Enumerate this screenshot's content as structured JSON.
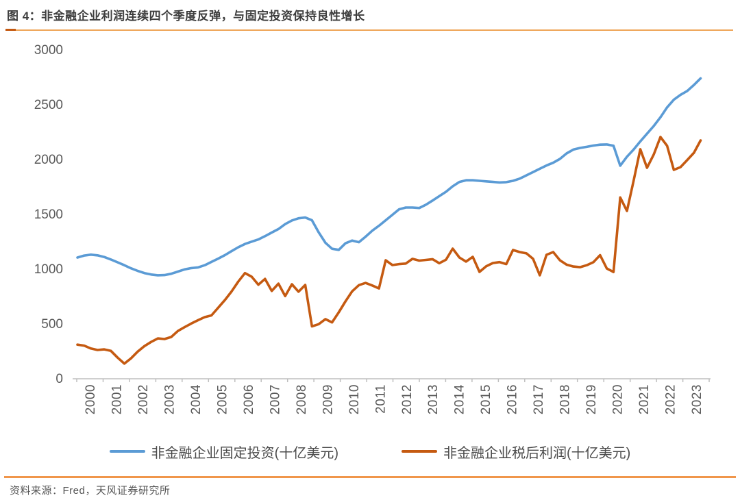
{
  "header": {
    "figure_title": "图 4：非金融企业利润连续四个季度反弹，与固定投资保持良性增长"
  },
  "footer": {
    "source": "资料来源：Fred，天风证券研究所"
  },
  "colors": {
    "series_blue": "#5B9BD5",
    "series_orange": "#C55A11",
    "title_underline": "#EFA558",
    "title_underline_accent": "#C45911",
    "footer_rule": "#F0964B",
    "axis_gray": "#BFBFBF",
    "tick_label_gray": "#595959"
  },
  "chart_data": {
    "type": "line",
    "title": "图 4：非金融企业利润连续四个季度反弹，与固定投资保持良性增长",
    "xlabel": "",
    "ylabel": "",
    "ylim": [
      0,
      3000
    ],
    "yticks": [
      0,
      500,
      1000,
      1500,
      2000,
      2500,
      3000
    ],
    "grid": false,
    "legend_position": "bottom",
    "x_frequency": "quarterly",
    "x_range": [
      "2000Q1",
      "2023Q2"
    ],
    "x_tick_labels": [
      "2000",
      "2001",
      "2002",
      "2003",
      "2004",
      "2005",
      "2006",
      "2007",
      "2008",
      "2009",
      "2010",
      "2011",
      "2012",
      "2013",
      "2014",
      "2015",
      "2016",
      "2017",
      "2018",
      "2019",
      "2020",
      "2021",
      "2022",
      "2023"
    ],
    "series": [
      {
        "name": "非金融企业固定投资(十亿美元)",
        "color": "#5B9BD5",
        "values": [
          1100,
          1118,
          1126,
          1120,
          1105,
          1082,
          1056,
          1030,
          1002,
          978,
          958,
          945,
          938,
          940,
          952,
          972,
          992,
          1004,
          1010,
          1030,
          1060,
          1090,
          1122,
          1158,
          1194,
          1224,
          1245,
          1265,
          1295,
          1328,
          1360,
          1405,
          1438,
          1458,
          1465,
          1440,
          1330,
          1235,
          1180,
          1170,
          1230,
          1255,
          1240,
          1290,
          1345,
          1390,
          1440,
          1490,
          1540,
          1556,
          1556,
          1552,
          1582,
          1620,
          1660,
          1700,
          1750,
          1790,
          1805,
          1805,
          1800,
          1795,
          1790,
          1785,
          1788,
          1800,
          1820,
          1850,
          1880,
          1910,
          1940,
          1965,
          2000,
          2050,
          2085,
          2100,
          2110,
          2122,
          2130,
          2132,
          2120,
          1938,
          2020,
          2085,
          2160,
          2230,
          2300,
          2380,
          2470,
          2540,
          2585,
          2620,
          2675,
          2735
        ]
      },
      {
        "name": "非金融企业税后利润(十亿美元)",
        "color": "#C55A11",
        "values": [
          305,
          296,
          270,
          256,
          262,
          248,
          186,
          132,
          180,
          242,
          292,
          330,
          362,
          356,
          375,
          430,
          465,
          498,
          528,
          556,
          572,
          642,
          712,
          790,
          880,
          958,
          925,
          852,
          905,
          795,
          862,
          748,
          856,
          788,
          850,
          472,
          492,
          538,
          508,
          600,
          700,
          792,
          848,
          868,
          845,
          818,
          1075,
          1031,
          1040,
          1045,
          1088,
          1072,
          1078,
          1085,
          1048,
          1080,
          1181,
          1100,
          1063,
          1106,
          969,
          1020,
          1050,
          1058,
          1040,
          1169,
          1150,
          1138,
          1088,
          938,
          1125,
          1150,
          1075,
          1035,
          1018,
          1012,
          1030,
          1058,
          1122,
          1000,
          968,
          1648,
          1525,
          1800,
          2088,
          1919,
          2040,
          2200,
          2120,
          1900,
          1925,
          1990,
          2056,
          2169
        ]
      }
    ]
  }
}
